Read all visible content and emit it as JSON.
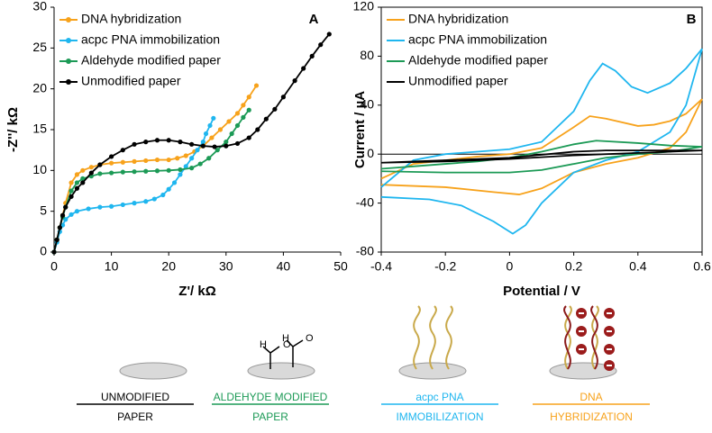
{
  "chart_data": [
    {
      "type": "line",
      "panel_label": "A",
      "x_label": "Z'/ kΩ",
      "y_label": "-Z''/ kΩ",
      "xlim": [
        0,
        50
      ],
      "ylim": [
        0,
        30
      ],
      "xticks": [
        0,
        10,
        20,
        30,
        40,
        50
      ],
      "yticks": [
        0,
        5,
        10,
        15,
        20,
        25,
        30
      ],
      "markers": true,
      "box": false,
      "legend": "upper left",
      "series": [
        {
          "name": "DNA hybridization",
          "color": "#f7a21b",
          "x": [
            0,
            0.5,
            1,
            1.5,
            2,
            3,
            4,
            5,
            6.5,
            8,
            10,
            12,
            14,
            16,
            18,
            20,
            21.5,
            23,
            24.5,
            26,
            27.5,
            29,
            30.5,
            32,
            33,
            34,
            35.3
          ],
          "values": [
            0,
            1.5,
            3,
            4.5,
            6,
            8.5,
            9.5,
            10,
            10.4,
            10.7,
            10.9,
            11,
            11.1,
            11.2,
            11.3,
            11.3,
            11.5,
            11.8,
            12.3,
            13,
            14,
            15,
            16,
            17,
            18,
            19,
            20.4
          ]
        },
        {
          "name": "acpc PNA immobilization",
          "color": "#1fb6ef",
          "x": [
            0,
            0.5,
            1,
            1.5,
            2,
            3,
            4,
            6,
            8,
            10,
            12,
            14,
            16,
            17.5,
            19,
            20,
            21,
            22,
            23,
            24,
            25,
            26,
            26.5,
            27.2,
            27.8
          ],
          "values": [
            0,
            1.2,
            2.5,
            3.3,
            4,
            4.6,
            5,
            5.3,
            5.5,
            5.6,
            5.8,
            6,
            6.2,
            6.5,
            7,
            7.7,
            8.5,
            9.5,
            10.5,
            11.5,
            12.5,
            13.5,
            14.5,
            15.5,
            16.4
          ]
        },
        {
          "name": "Aldehyde modified paper",
          "color": "#1c9a56",
          "x": [
            0,
            0.5,
            1,
            1.5,
            2,
            3,
            4,
            5,
            6.5,
            8,
            10,
            12,
            14,
            16,
            18,
            20,
            22,
            24,
            25.5,
            27,
            28.5,
            30,
            31,
            32,
            33,
            34
          ],
          "values": [
            0,
            1.5,
            3,
            4.3,
            5.5,
            7.5,
            8.5,
            9,
            9.3,
            9.6,
            9.7,
            9.8,
            9.85,
            9.9,
            9.95,
            10,
            10.1,
            10.3,
            10.8,
            11.5,
            12.5,
            13.5,
            14.5,
            15.5,
            16.5,
            17.4
          ]
        },
        {
          "name": "Unmodified paper",
          "color": "#000000",
          "x": [
            0,
            0.5,
            1,
            1.5,
            2,
            3,
            4,
            5,
            6.5,
            8,
            10,
            12,
            14,
            16,
            18,
            20,
            22,
            24,
            26,
            28,
            30,
            32,
            34,
            35.5,
            37,
            38.5,
            40,
            42,
            43.5,
            45,
            46.5,
            48
          ],
          "values": [
            0,
            1.5,
            3,
            4.5,
            5.5,
            6.8,
            7.8,
            8.5,
            9.7,
            10.7,
            11.7,
            12.5,
            13.2,
            13.5,
            13.7,
            13.7,
            13.5,
            13.2,
            13,
            12.9,
            13,
            13.3,
            14,
            15,
            16.3,
            17.5,
            19,
            21,
            22.5,
            24,
            25.4,
            26.7
          ]
        }
      ]
    },
    {
      "type": "line",
      "panel_label": "B",
      "x_label": "Potential / V",
      "y_label": "Current / µA",
      "xlim": [
        -0.4,
        0.6
      ],
      "ylim": [
        -80,
        120
      ],
      "xticks": [
        -0.4,
        -0.2,
        0,
        0.2,
        0.4,
        0.6
      ],
      "yticks": [
        -80,
        -40,
        0,
        40,
        80,
        120
      ],
      "markers": false,
      "box": true,
      "legend": "upper left",
      "series": [
        {
          "name": "DNA hybridization",
          "color": "#f7a21b",
          "x": [
            -0.4,
            -0.3,
            -0.2,
            -0.1,
            0,
            0.1,
            0.2,
            0.25,
            0.3,
            0.4,
            0.45,
            0.5,
            0.55,
            0.6,
            0.55,
            0.5,
            0.4,
            0.3,
            0.2,
            0.1,
            0.03,
            -0.05,
            -0.2,
            -0.4
          ],
          "values": [
            -20,
            -8,
            -5,
            -2,
            0,
            5,
            22,
            31,
            29,
            23,
            24,
            27,
            33,
            45,
            18,
            5,
            -3,
            -8,
            -15,
            -28,
            -33,
            -31,
            -27,
            -25
          ]
        },
        {
          "name": "acpc PNA immobilization",
          "color": "#1fb6ef",
          "x": [
            -0.4,
            -0.3,
            -0.2,
            -0.1,
            0,
            0.1,
            0.2,
            0.25,
            0.29,
            0.33,
            0.38,
            0.43,
            0.5,
            0.55,
            0.6,
            0.55,
            0.5,
            0.4,
            0.3,
            0.2,
            0.1,
            0.05,
            0.01,
            -0.05,
            -0.15,
            -0.25,
            -0.4
          ],
          "values": [
            -27,
            -5,
            0,
            2,
            4,
            10,
            35,
            60,
            74,
            68,
            55,
            50,
            58,
            70,
            86,
            40,
            18,
            2,
            -5,
            -15,
            -40,
            -58,
            -65,
            -55,
            -42,
            -37,
            -35
          ]
        },
        {
          "name": "Aldehyde modified paper",
          "color": "#1c9a56",
          "x": [
            -0.4,
            -0.3,
            -0.1,
            0,
            0.1,
            0.2,
            0.27,
            0.4,
            0.5,
            0.6,
            0.5,
            0.4,
            0.3,
            0.2,
            0.1,
            0,
            -0.2,
            -0.4
          ],
          "values": [
            -12,
            -10,
            -6,
            -3,
            2,
            8,
            11,
            9,
            7,
            6,
            2,
            0,
            -3,
            -8,
            -13,
            -15,
            -15,
            -14
          ]
        },
        {
          "name": "Unmodified paper",
          "color": "#000000",
          "x": [
            -0.4,
            -0.2,
            0,
            0.2,
            0.3,
            0.6,
            0.4,
            0.2,
            0,
            -0.2,
            -0.4
          ],
          "values": [
            -7,
            -5,
            -3,
            2,
            3,
            3,
            1,
            -1,
            -4,
            -6,
            -7
          ]
        }
      ]
    }
  ],
  "diagram": {
    "items": [
      {
        "label": [
          "UNMODIFIED",
          "PAPER"
        ],
        "color": "#000000"
      },
      {
        "label": [
          "ALDEHYDE MODIFIED",
          "PAPER"
        ],
        "color": "#1c9a56",
        "atoms": [
          "H",
          "O"
        ]
      },
      {
        "label": [
          "acpc PNA",
          "IMMOBILIZATION"
        ],
        "color": "#1fb6ef"
      },
      {
        "label": [
          "DNA",
          "HYBRIDIZATION"
        ],
        "color": "#f7a21b"
      }
    ]
  }
}
